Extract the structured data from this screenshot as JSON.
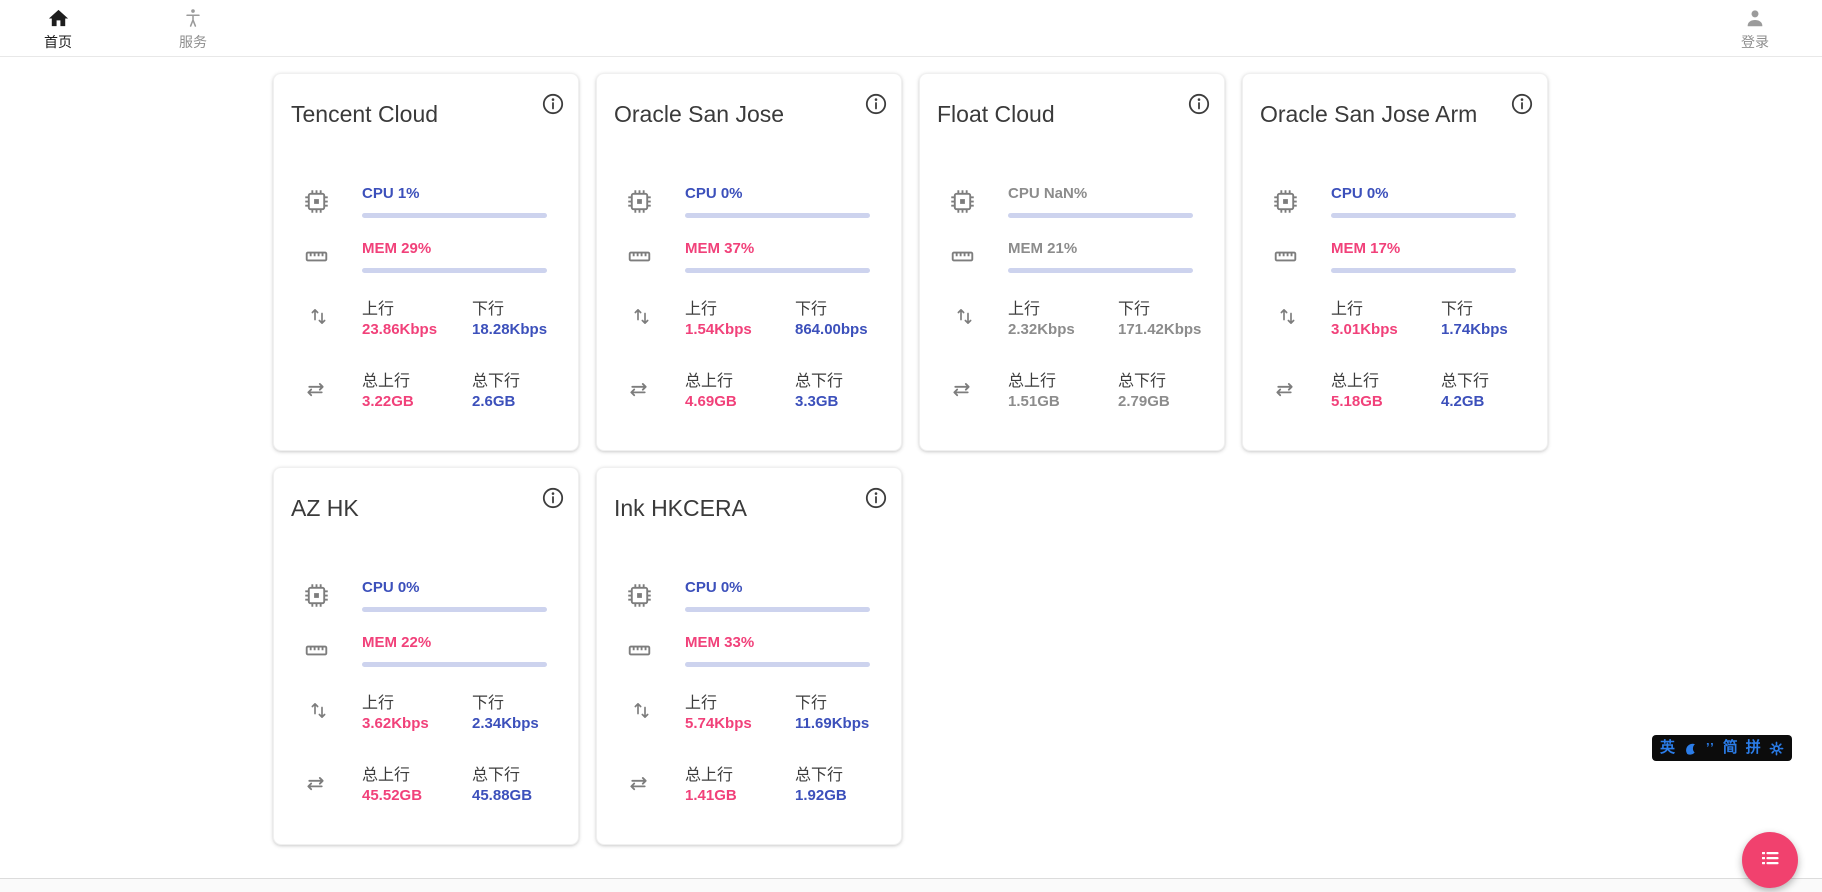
{
  "nav": {
    "home": "首页",
    "services": "服务",
    "login": "登录"
  },
  "card_labels": {
    "up": "上行",
    "down": "下行",
    "total_up": "总上行",
    "total_down": "总下行"
  },
  "cards": [
    {
      "title": "Tencent Cloud",
      "cpu_label": "CPU 1%",
      "cpu_pct": 1,
      "mem_label": "MEM 29%",
      "mem_pct": 29,
      "up_value": "23.86Kbps",
      "down_value": "18.28Kbps",
      "total_up_value": "3.22GB",
      "total_down_value": "2.6GB",
      "offline": false
    },
    {
      "title": "Oracle San Jose",
      "cpu_label": "CPU 0%",
      "cpu_pct": 0,
      "mem_label": "MEM 37%",
      "mem_pct": 37,
      "up_value": "1.54Kbps",
      "down_value": "864.00bps",
      "total_up_value": "4.69GB",
      "total_down_value": "3.3GB",
      "offline": false
    },
    {
      "title": "Float Cloud",
      "cpu_label": "CPU NaN%",
      "cpu_pct": null,
      "mem_label": "MEM 21%",
      "mem_pct": 21,
      "up_value": "2.32Kbps",
      "down_value": "171.42Kbps",
      "total_up_value": "1.51GB",
      "total_down_value": "2.79GB",
      "offline": true
    },
    {
      "title": "Oracle San Jose Arm",
      "cpu_label": "CPU 0%",
      "cpu_pct": 0,
      "mem_label": "MEM 17%",
      "mem_pct": 17,
      "up_value": "3.01Kbps",
      "down_value": "1.74Kbps",
      "total_up_value": "5.18GB",
      "total_down_value": "4.2GB",
      "offline": false
    },
    {
      "title": "AZ HK",
      "cpu_label": "CPU 0%",
      "cpu_pct": 0,
      "mem_label": "MEM 22%",
      "mem_pct": 22,
      "up_value": "3.62Kbps",
      "down_value": "2.34Kbps",
      "total_up_value": "45.52GB",
      "total_down_value": "45.88GB",
      "offline": false
    },
    {
      "title": "Ink HKCERA",
      "cpu_label": "CPU 0%",
      "cpu_pct": 0,
      "mem_label": "MEM 33%",
      "mem_pct": 33,
      "up_value": "5.74Kbps",
      "down_value": "11.69Kbps",
      "total_up_value": "1.41GB",
      "total_down_value": "1.92GB",
      "offline": false
    }
  ],
  "ime": {
    "english": "英",
    "quotes": "’’",
    "simplified": "简",
    "pinyin": "拼"
  },
  "icons": {
    "nav_home": "home-icon",
    "nav_services": "accessibility-person-icon",
    "nav_login": "person-icon",
    "card_info": "info-outline-icon",
    "cpu": "chip-icon",
    "mem": "ruler-icon",
    "net": "up-down-arrows-icon",
    "total": "left-right-arrows-icon",
    "ime_moon": "moon-icon",
    "ime_gear": "gear-icon",
    "fab": "bulleted-list-icon"
  },
  "colors": {
    "accent_pink": "#f1417a",
    "accent_blue": "#3c50bb",
    "bar_track": "#cdd3ee",
    "offline_gray": "#8c8c8c",
    "fab_pink": "#f1416e",
    "ime_blue": "#2b7de9"
  }
}
